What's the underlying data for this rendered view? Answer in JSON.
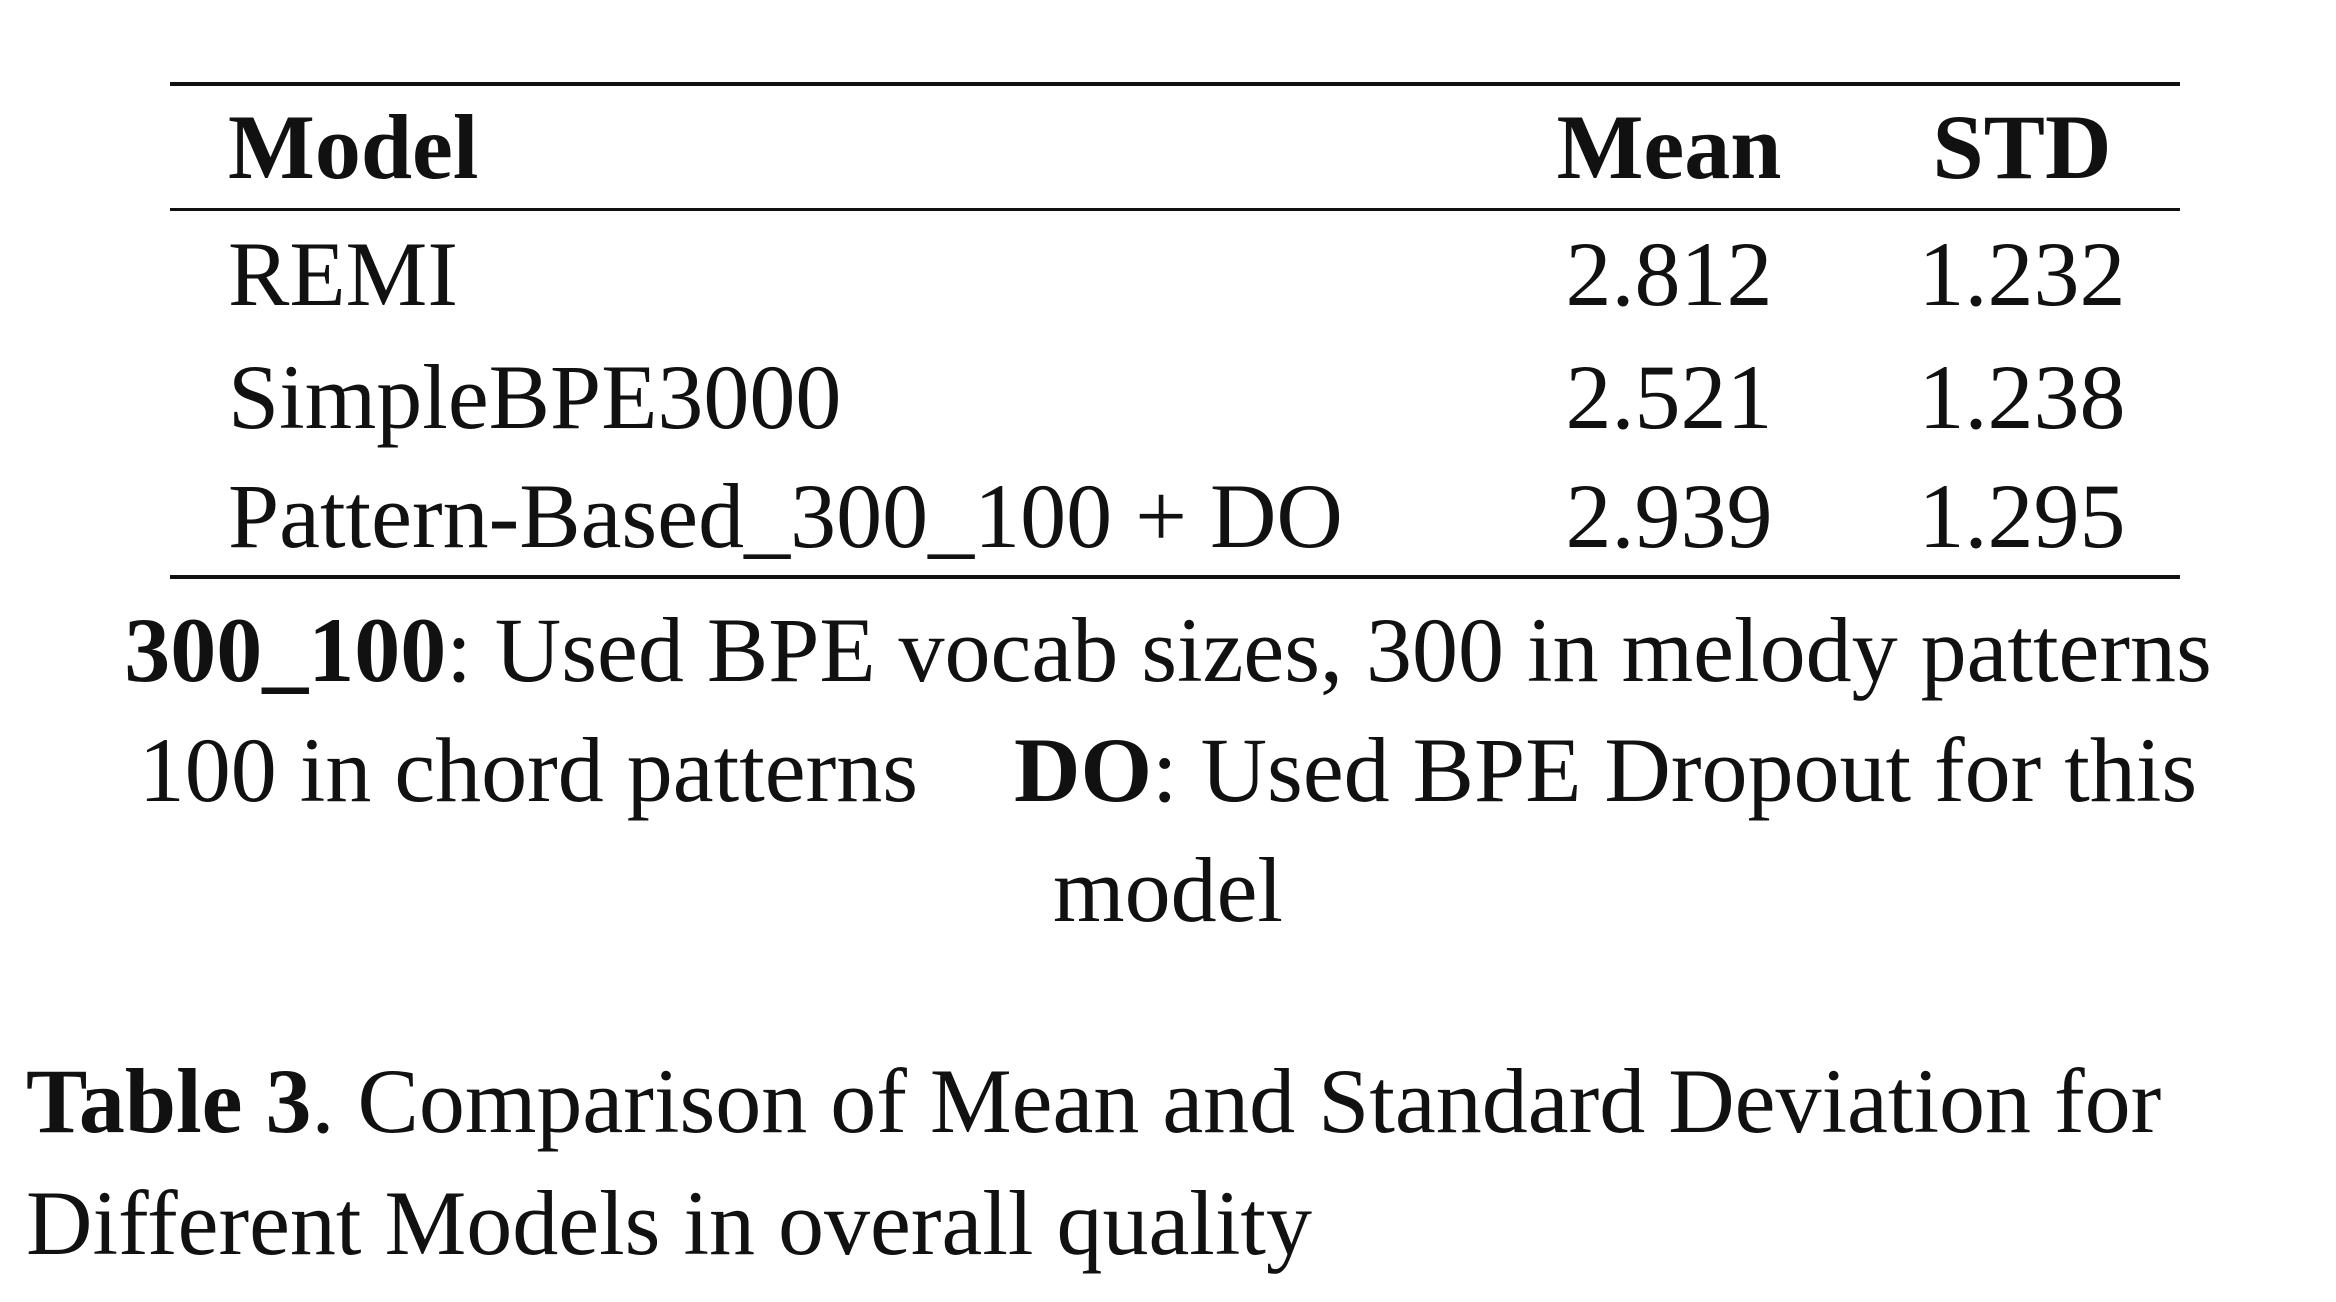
{
  "table": {
    "headers": {
      "model": "Model",
      "mean": "Mean",
      "std": "STD"
    },
    "rows": [
      {
        "model": "REMI",
        "mean": "2.812",
        "std": "1.232"
      },
      {
        "model": "SimpleBPE3000",
        "mean": "2.521",
        "std": "1.238"
      },
      {
        "model": "Pattern-Based_300_100 + DO",
        "mean": "2.939",
        "std": "1.295"
      }
    ]
  },
  "notes": {
    "term1": "300_100",
    "def1": ": Used BPE vocab sizes, 300 in melody patterns",
    "def1_cont": "100 in chord patterns",
    "term2": "DO",
    "def2": ": Used BPE Dropout for this",
    "def2_cont": "model"
  },
  "caption": {
    "label": "Table 3",
    "text": ". Comparison of Mean and Standard Deviation for",
    "text_cont": "Different Models in overall quality"
  }
}
